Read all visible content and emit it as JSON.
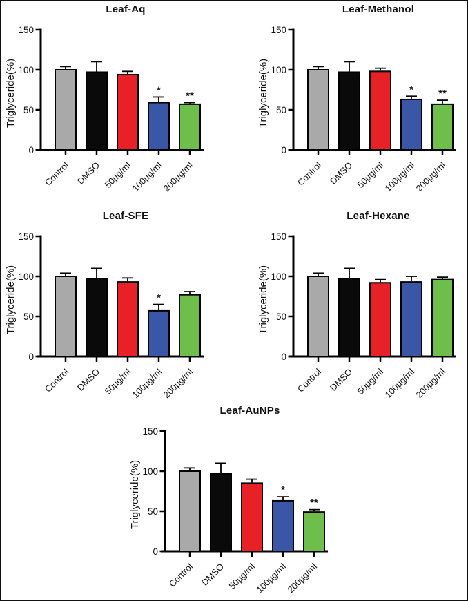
{
  "figure": {
    "background": "#ffffff",
    "frame_color": "#000000"
  },
  "style": {
    "axis_color": "#000000",
    "error_bar_color": "#000000",
    "text_color": "#111111",
    "bar_outline_color": "#000000"
  },
  "chart_data": [
    {
      "type": "bar",
      "title": "Leaf-Aq",
      "ylabel": "Triglyceride(%)",
      "xlabel": "",
      "categories": [
        "Control",
        "DMSO",
        "50µg/ml",
        "100µg/ml",
        "200µg/ml"
      ],
      "values": [
        100,
        97,
        94,
        59,
        57
      ],
      "errors": [
        4,
        13,
        4,
        7,
        2
      ],
      "significance": [
        "",
        "",
        "",
        "*",
        "**"
      ],
      "bar_colors": [
        "#a9a9a9",
        "#0a0a0a",
        "#e82127",
        "#3a56a7",
        "#6dbe4a"
      ],
      "ylim": [
        0,
        150
      ],
      "yticks": [
        0,
        50,
        100,
        150
      ],
      "grid": false,
      "legend": "none"
    },
    {
      "type": "bar",
      "title": "Leaf-Methanol",
      "ylabel": "Triglyceride(%)",
      "xlabel": "",
      "categories": [
        "Control",
        "DMSO",
        "50µg/ml",
        "100µg/ml",
        "200µg/ml"
      ],
      "values": [
        100,
        97,
        98,
        63,
        57
      ],
      "errors": [
        4,
        13,
        4,
        4,
        5
      ],
      "significance": [
        "",
        "",
        "",
        "*",
        "**"
      ],
      "bar_colors": [
        "#a9a9a9",
        "#0a0a0a",
        "#e82127",
        "#3a56a7",
        "#6dbe4a"
      ],
      "ylim": [
        0,
        150
      ],
      "yticks": [
        0,
        50,
        100,
        150
      ],
      "grid": false,
      "legend": "none"
    },
    {
      "type": "bar",
      "title": "Leaf-SFE",
      "ylabel": "Triglyceride(%)",
      "xlabel": "",
      "categories": [
        "Control",
        "DMSO",
        "50µg/ml",
        "100µg/ml",
        "200µg/ml"
      ],
      "values": [
        100,
        97,
        93,
        57,
        77
      ],
      "errors": [
        4,
        13,
        5,
        8,
        4
      ],
      "significance": [
        "",
        "",
        "",
        "*",
        ""
      ],
      "bar_colors": [
        "#a9a9a9",
        "#0a0a0a",
        "#e82127",
        "#3a56a7",
        "#6dbe4a"
      ],
      "ylim": [
        0,
        150
      ],
      "yticks": [
        0,
        50,
        100,
        150
      ],
      "grid": false,
      "legend": "none"
    },
    {
      "type": "bar",
      "title": "Leaf-Hexane",
      "ylabel": "Triglyceride(%)",
      "xlabel": "",
      "categories": [
        "Control",
        "DMSO",
        "50µg/ml",
        "100µg/ml",
        "200µg/ml"
      ],
      "values": [
        100,
        97,
        92,
        93,
        96
      ],
      "errors": [
        4,
        13,
        4,
        7,
        3
      ],
      "significance": [
        "",
        "",
        "",
        "",
        ""
      ],
      "bar_colors": [
        "#a9a9a9",
        "#0a0a0a",
        "#e82127",
        "#3a56a7",
        "#6dbe4a"
      ],
      "ylim": [
        0,
        150
      ],
      "yticks": [
        0,
        50,
        100,
        150
      ],
      "grid": false,
      "legend": "none"
    },
    {
      "type": "bar",
      "title": "Leaf-AuNPs",
      "ylabel": "Triglyceride(%)",
      "xlabel": "",
      "categories": [
        "Control",
        "DMSO",
        "50µg/ml",
        "100µg/ml",
        "200µg/ml"
      ],
      "values": [
        100,
        97,
        85,
        63,
        49
      ],
      "errors": [
        4,
        13,
        5,
        5,
        3
      ],
      "significance": [
        "",
        "",
        "",
        "*",
        "**"
      ],
      "bar_colors": [
        "#a9a9a9",
        "#0a0a0a",
        "#e82127",
        "#3a56a7",
        "#6dbe4a"
      ],
      "ylim": [
        0,
        150
      ],
      "yticks": [
        0,
        50,
        100,
        150
      ],
      "grid": false,
      "legend": "none"
    }
  ]
}
